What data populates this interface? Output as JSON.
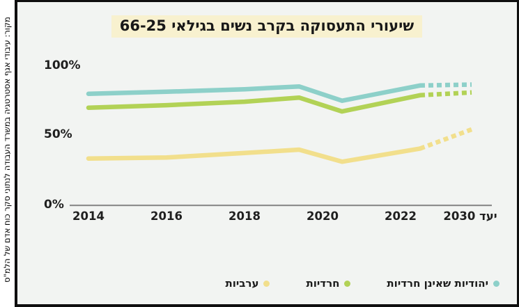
{
  "source_note": "מקור: עיבודי אגף אסטרטגיה במשרד העבודה לנתוני סקר כוח אדם של הלמ\"ס",
  "title_highlight_color": "#f8f1cf",
  "chart_data": {
    "type": "line",
    "title": "שיעורי התעסוקה בקרב נשים בגילאי 66-25",
    "xlabel": "",
    "ylabel": "",
    "units": "percent",
    "ylim": [
      0,
      100
    ],
    "grid": false,
    "legend_position": "bottom-right",
    "projection_note": "dashed segments are projection to 2030 target",
    "y_ticks": [
      {
        "label": "100%",
        "value": 100
      },
      {
        "label": "50%",
        "value": 50
      },
      {
        "label": "0%",
        "value": 0
      }
    ],
    "x_ticks": [
      {
        "label": "2014"
      },
      {
        "label": "2016"
      },
      {
        "label": "2018"
      },
      {
        "label": "2020"
      },
      {
        "label": "2022"
      },
      {
        "label": "יעד 2030"
      }
    ],
    "series": [
      {
        "name": "יהודיות שאינן חרדיות",
        "color": "#8dd0c9",
        "solid": [
          [
            2014,
            79
          ],
          [
            2016,
            80.5
          ],
          [
            2018,
            82.3
          ],
          [
            2019.4,
            84.3
          ],
          [
            2020.5,
            74
          ],
          [
            2022.5,
            85
          ]
        ],
        "dashed": [
          [
            2022.5,
            85
          ],
          [
            2030,
            85.7
          ]
        ]
      },
      {
        "name": "חרדיות",
        "color": "#b2d256",
        "solid": [
          [
            2014,
            69
          ],
          [
            2016,
            70.8
          ],
          [
            2018,
            73.3
          ],
          [
            2019.4,
            76.3
          ],
          [
            2020.5,
            66.3
          ],
          [
            2022.5,
            78
          ]
        ],
        "dashed": [
          [
            2022.5,
            78
          ],
          [
            2030,
            80
          ]
        ]
      },
      {
        "name": "ערביות",
        "color": "#f2df8c",
        "solid": [
          [
            2014,
            32.3
          ],
          [
            2016,
            33
          ],
          [
            2018,
            36.3
          ],
          [
            2019.4,
            38.7
          ],
          [
            2020.5,
            30
          ],
          [
            2022.5,
            39.5
          ]
        ],
        "dashed": [
          [
            2022.5,
            39.5
          ],
          [
            2030,
            53.3
          ]
        ]
      }
    ]
  }
}
